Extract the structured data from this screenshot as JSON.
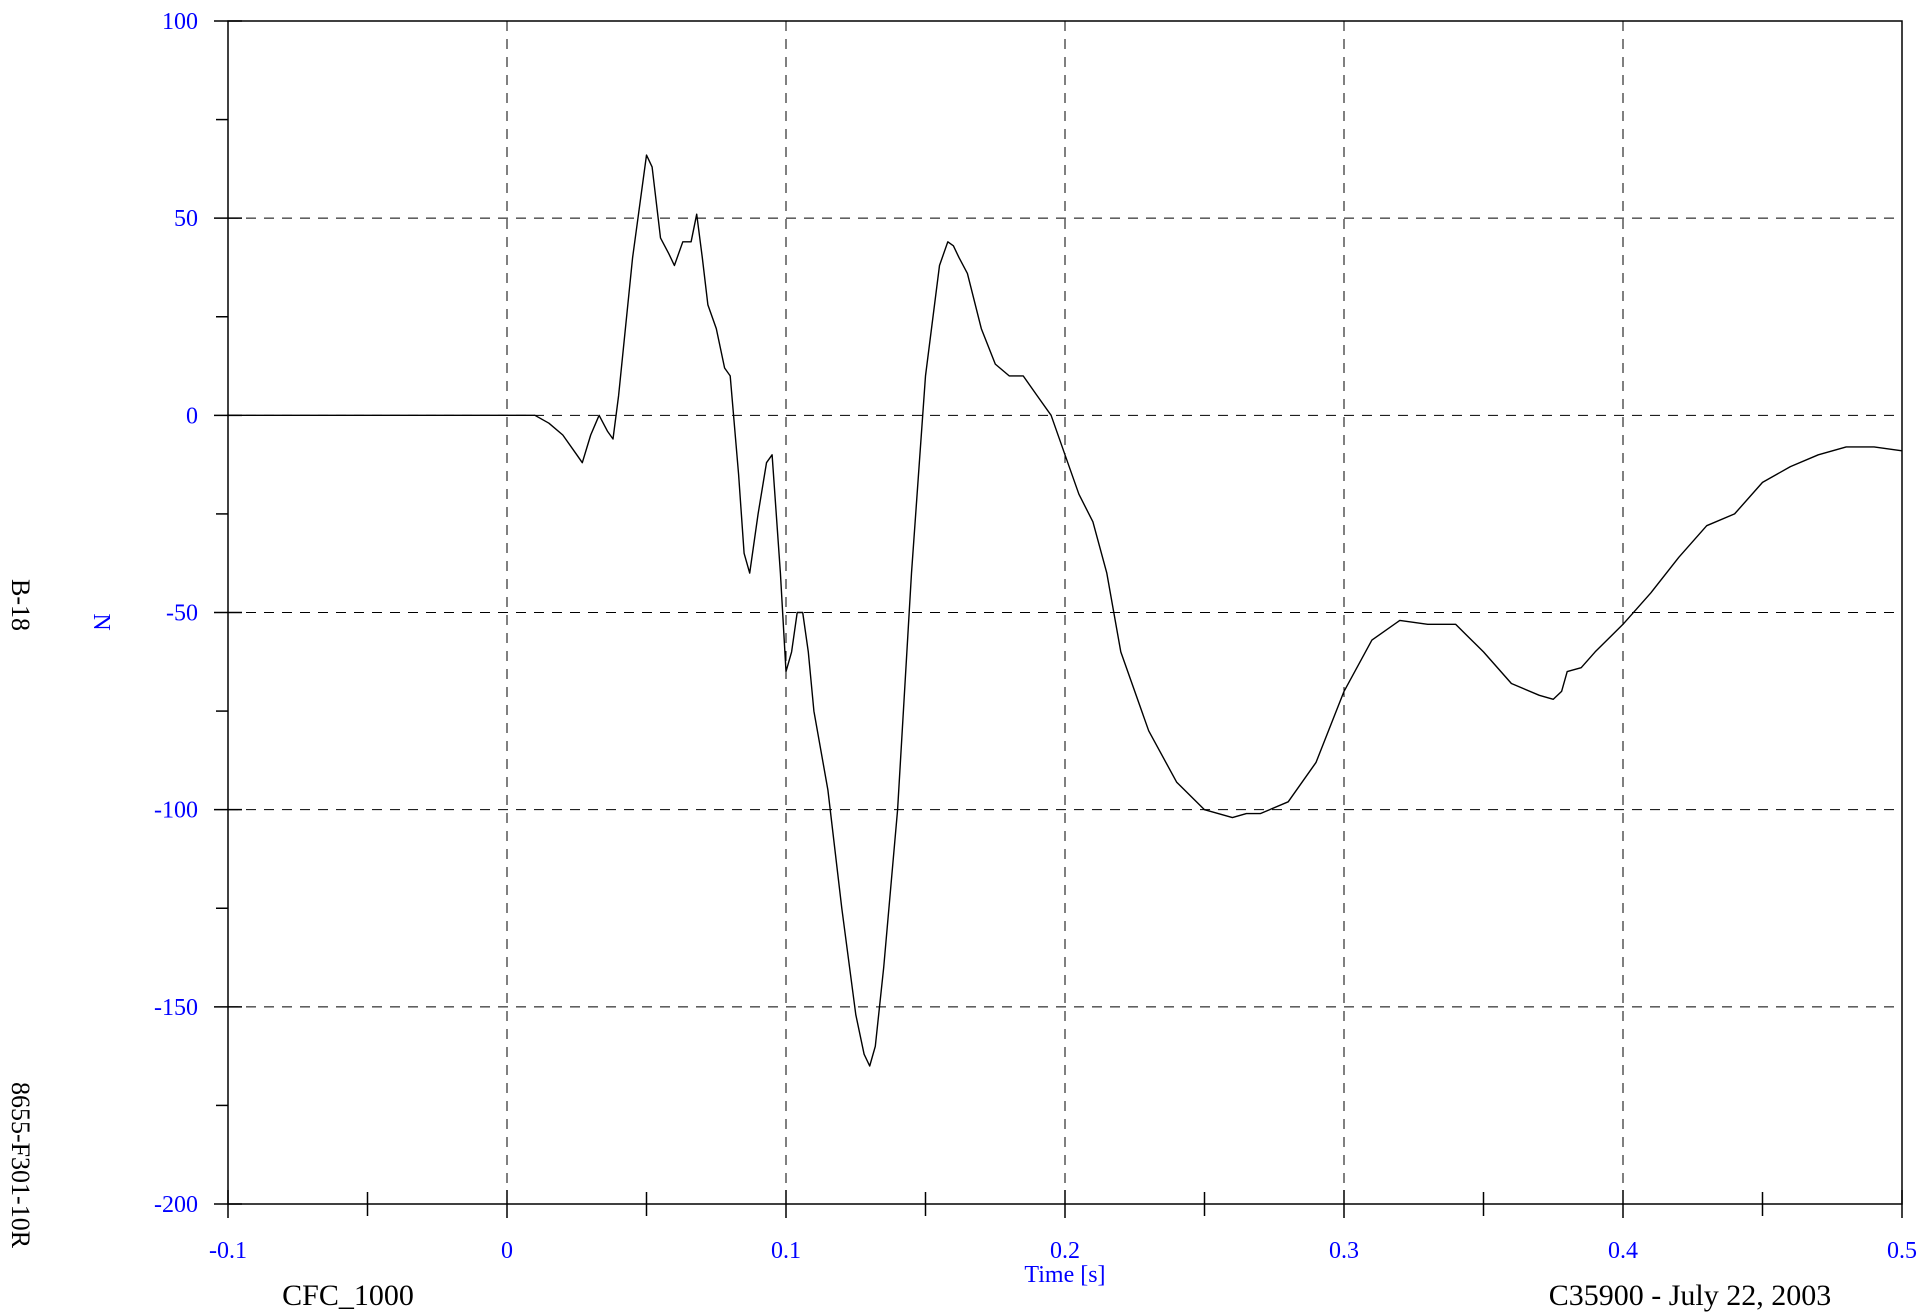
{
  "chart_data": {
    "type": "line",
    "title": "",
    "xlabel": "Time [s]",
    "ylabel": "N",
    "xlim": [
      -0.1,
      0.5
    ],
    "ylim": [
      -200,
      100
    ],
    "x_ticks": [
      -0.1,
      0,
      0.1,
      0.2,
      0.3,
      0.4,
      0.5
    ],
    "x_tick_labels": [
      "-0.1",
      "0",
      "0.1",
      "0.2",
      "0.3",
      "0.4",
      "0.5"
    ],
    "x_minor_ticks": [
      -0.05,
      0.05,
      0.15,
      0.25,
      0.35,
      0.45
    ],
    "y_ticks": [
      100,
      50,
      0,
      -50,
      -100,
      -150,
      -200
    ],
    "y_tick_labels": [
      "100",
      "50",
      "0",
      "-50",
      "-100",
      "-150",
      "-200"
    ],
    "y_minor_ticks": [
      75,
      25,
      -25,
      -75,
      -125,
      -175
    ],
    "grid": true,
    "grid_style": "dashed",
    "line_color": "#000000",
    "label_color": "#0000ff",
    "series": [
      {
        "x": [
          -0.1,
          -0.08,
          -0.06,
          -0.04,
          -0.02,
          0,
          0.01,
          0.015,
          0.02,
          0.025,
          0.027,
          0.03,
          0.033,
          0.036,
          0.038,
          0.04,
          0.045,
          0.05,
          0.052,
          0.055,
          0.058,
          0.06,
          0.063,
          0.066,
          0.068,
          0.07,
          0.072,
          0.075,
          0.078,
          0.08,
          0.083,
          0.085,
          0.087,
          0.09,
          0.093,
          0.095,
          0.098,
          0.1,
          0.102,
          0.104,
          0.106,
          0.108,
          0.11,
          0.115,
          0.12,
          0.125,
          0.128,
          0.13,
          0.132,
          0.135,
          0.14,
          0.145,
          0.15,
          0.155,
          0.158,
          0.16,
          0.162,
          0.165,
          0.17,
          0.175,
          0.18,
          0.185,
          0.19,
          0.195,
          0.2,
          0.205,
          0.21,
          0.215,
          0.22,
          0.23,
          0.24,
          0.25,
          0.26,
          0.265,
          0.27,
          0.28,
          0.29,
          0.3,
          0.31,
          0.32,
          0.33,
          0.34,
          0.35,
          0.36,
          0.37,
          0.375,
          0.378,
          0.38,
          0.385,
          0.39,
          0.4,
          0.41,
          0.42,
          0.43,
          0.44,
          0.45,
          0.46,
          0.47,
          0.48,
          0.49,
          0.5
        ],
        "y": [
          0,
          0,
          0,
          0,
          0,
          0,
          0,
          -2,
          -5,
          -10,
          -12,
          -5,
          0,
          -4,
          -6,
          5,
          40,
          66,
          63,
          45,
          41,
          38,
          44,
          44,
          51,
          40,
          28,
          22,
          12,
          10,
          -15,
          -35,
          -40,
          -25,
          -12,
          -10,
          -40,
          -65,
          -60,
          -50,
          -50,
          -60,
          -75,
          -95,
          -125,
          -152,
          -162,
          -165,
          -160,
          -140,
          -100,
          -40,
          10,
          38,
          44,
          43,
          40,
          36,
          22,
          13,
          10,
          10,
          5,
          0,
          -10,
          -20,
          -27,
          -40,
          -60,
          -80,
          -93,
          -100,
          -102,
          -101,
          -101,
          -98,
          -88,
          -70,
          -57,
          -52,
          -53,
          -53,
          -60,
          -68,
          -71,
          -72,
          -70,
          -65,
          -64,
          -60,
          -53,
          -45,
          -36,
          -28,
          -25,
          -17,
          -13,
          -10,
          -8,
          -8,
          -9
        ]
      }
    ]
  },
  "side_labels": {
    "upper": "B-18",
    "lower": "8655-F301-10R"
  },
  "footer": {
    "left": "CFC_1000",
    "right": "C35900 - July 22, 2003"
  }
}
